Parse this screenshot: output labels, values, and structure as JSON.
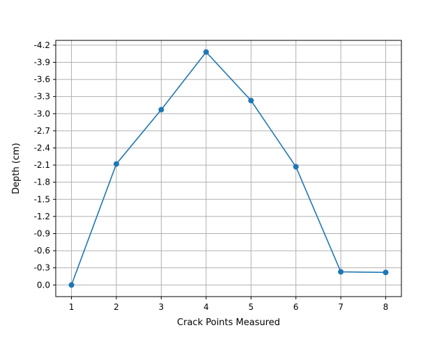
{
  "chart_data": {
    "type": "line",
    "title": "",
    "xlabel": "Crack Points Measured",
    "ylabel": "Depth (cm)",
    "x": [
      1,
      2,
      3,
      4,
      5,
      6,
      7,
      8
    ],
    "series": [
      {
        "values": [
          0.0,
          -2.12,
          -3.07,
          -4.08,
          -3.23,
          -2.07,
          -0.23,
          -0.22
        ]
      }
    ],
    "xticks": [
      "1",
      "2",
      "3",
      "4",
      "5",
      "6",
      "7",
      "8"
    ],
    "yticks": [
      "0.0",
      "-0.3",
      "-0.6",
      "-0.9",
      "-1.2",
      "-1.5",
      "-1.8",
      "-2.1",
      "-2.4",
      "-2.7",
      "-3.0",
      "-3.3",
      "-3.6",
      "-3.9",
      "-4.2"
    ],
    "ytick_values": [
      0.0,
      -0.3,
      -0.6,
      -0.9,
      -1.2,
      -1.5,
      -1.8,
      -2.1,
      -2.4,
      -2.7,
      -3.0,
      -3.3,
      -3.6,
      -3.9,
      -4.2
    ],
    "xlim": [
      0.65,
      8.35
    ],
    "ylim": [
      0.204,
      -4.284
    ],
    "y_inverted": true,
    "grid": true,
    "marker": "circle",
    "line_color": "#1f77b4",
    "grid_color": "#b0b0b0"
  }
}
